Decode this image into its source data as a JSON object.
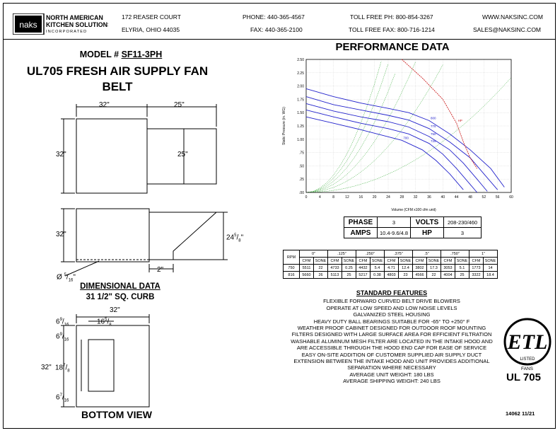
{
  "header": {
    "logo_text_main": "NORTH AMERICAN",
    "logo_text_sub": "KITCHEN SOLUTIONS",
    "logo_text_inc": "INCORPORATED",
    "logo_mark": "naks",
    "address1": "172 REASER COURT",
    "address2": "ELYRIA, OHIO 44035",
    "phone": "PHONE: 440-365-4567",
    "fax": "FAX: 440-365-2100",
    "tollfree_ph": "TOLL FREE PH: 800-854-3267",
    "tollfree_fax": "TOLL FREE FAX: 800-716-1214",
    "web": "WWW.NAKSINC.COM",
    "email": "SALES@NAKSINC.COM"
  },
  "model": {
    "label": "MODEL #",
    "number": "SF11-3PH"
  },
  "product": {
    "line1": "UL705 FRESH AIR SUPPLY FAN",
    "line2": "BELT"
  },
  "performance_title": "PERFORMANCE DATA",
  "dimensions": {
    "front_w1": "32\"",
    "front_w2": "25\"",
    "front_h": "32\"",
    "inner_h": "25\"",
    "side_h": "32\"",
    "side_hood_w": "24",
    "side_hood_frac_n": "5",
    "side_hood_frac_d": "8",
    "side_hood_unit": "\"",
    "side_gap": "2\"",
    "dia_prefix": "Ø",
    "dia_n": "5",
    "dia_d": "16",
    "dia_unit": "\"",
    "title": "DIMENSIONAL DATA",
    "curb": "31 1/2\" SQ. CURB",
    "bottom_w": "32\"",
    "bottom_h": "32\"",
    "b_left_top_whole": "6",
    "b_left_top_n": "9",
    "b_left_top_d": "16",
    "b_open_w_whole": "16",
    "b_open_w_n": "5",
    "b_open_w_d": "8",
    "b_top_gap_whole": "6",
    "b_top_gap_n": "9",
    "b_top_gap_d": "16",
    "b_open_h_whole": "18",
    "b_open_h_n": "7",
    "b_open_h_d": "8",
    "b_bot_gap_whole": "6",
    "b_bot_gap_n": "7",
    "b_bot_gap_d": "16",
    "bottom_view": "BOTTOM VIEW"
  },
  "spec": {
    "phase_label": "PHASE",
    "phase": "3",
    "volts_label": "VOLTS",
    "volts": "208-230/460",
    "amps_label": "AMPS",
    "amps": "10.4-9.6/4.8",
    "hp_label": "HP",
    "hp": "3"
  },
  "perf_table": {
    "rpm_label": "RPM",
    "sp_headers": [
      "0\"",
      ".125\"",
      ".250\"",
      ".375\"",
      ".5\"",
      ".750\"",
      "1\""
    ],
    "sub_headers": [
      "CFM",
      "SONE"
    ],
    "rows": [
      {
        "rpm": "750",
        "cells": [
          "5511",
          "22",
          "4733",
          "0.25",
          "4432",
          "5.4",
          "4.71",
          "12.4",
          "3802",
          "17.3",
          "3053",
          "5.1",
          "1773",
          "14"
        ]
      },
      {
        "rpm": "816",
        "cells": [
          "5660",
          "26",
          "5113",
          "25",
          "5217",
          "0.38",
          "4803",
          "23",
          "4566",
          "22",
          "4004",
          "25",
          "3322",
          "18.4"
        ]
      }
    ]
  },
  "features": {
    "title": "STANDARD FEATURES",
    "items": [
      "FLEXIBLE FORWARD CURVED BELT DRIVE BLOWERS",
      "OPERATE AT LOW SPEED AND LOW NOISE LEVELS",
      "GALVANIZED STEEL HOUSING",
      "HEAVY DUTY BALL BEARINGS SUITABLE FOR -65° TO +250° F",
      "WEATHER PROOF CABINET DESIGNED FOR OUTDOOR ROOF MOUNTING",
      "FILTERS DESIGNED WITH LARGE SURFACE AREA FOR EFFICIENT FILTRATION",
      "WASHABLE ALUMINUM MESH FILTER ARE LOCATED IN THE INTAKE HOOD AND",
      "ARE ACCESSIBLE THROUGH THE HOOD END CAP FOR EASE OF SERVICE",
      "EASY ON-SITE ADDITION OF CUSTOMER SUPPLIED AIR SUPPLY DUCT",
      "EXTENSION BETWEEN THE INTAKE HOOD AND UNIT PROVIDES ADDITIONAL",
      "SEPARATION WHERE NECESSARY",
      "AVERAGE UNIT WEIGHT: 180 LBS",
      "AVERAGE SHIPPING WEIGHT: 240 LBS"
    ]
  },
  "etl": {
    "mark": "ETL",
    "listed": "LISTED",
    "fans": "FANS",
    "standard": "UL 705",
    "colors": {
      "ink": "#000000"
    }
  },
  "doc_number": "14062 11/21",
  "chart_data": {
    "type": "line",
    "title": "",
    "xlabel": "Volume (CFM x100 cfm unit)",
    "ylabel": "Static Pressure (in. WG)",
    "xlim": [
      0,
      60
    ],
    "ylim": [
      0,
      2.5
    ],
    "x_ticks": [
      "0",
      "4",
      "8",
      "12",
      "16",
      "20",
      "24",
      "28",
      "32",
      "36",
      "40",
      "44",
      "48",
      "52",
      "56",
      "60"
    ],
    "y_ticks": [
      ".00",
      ".25",
      ".50",
      ".75",
      "1.00",
      "1.25",
      "1.50",
      "1.75",
      "2.00",
      "2.25",
      "2.50"
    ],
    "series": [
      {
        "name": "800",
        "color": "#2222cc",
        "points": [
          [
            0,
            1.95
          ],
          [
            8,
            1.8
          ],
          [
            16,
            1.68
          ],
          [
            24,
            1.58
          ],
          [
            30,
            1.5
          ],
          [
            36,
            1.35
          ],
          [
            42,
            1.1
          ],
          [
            48,
            0.8
          ],
          [
            54,
            0.45
          ],
          [
            58,
            0.1
          ]
        ]
      },
      {
        "name": "775",
        "color": "#2222cc",
        "points": [
          [
            0,
            1.8
          ],
          [
            8,
            1.65
          ],
          [
            16,
            1.55
          ],
          [
            24,
            1.45
          ],
          [
            30,
            1.36
          ],
          [
            36,
            1.2
          ],
          [
            42,
            0.95
          ],
          [
            48,
            0.65
          ],
          [
            52,
            0.35
          ],
          [
            56,
            0.05
          ]
        ]
      },
      {
        "name": "750",
        "color": "#2222cc",
        "points": [
          [
            0,
            1.67
          ],
          [
            8,
            1.53
          ],
          [
            16,
            1.42
          ],
          [
            24,
            1.33
          ],
          [
            30,
            1.23
          ],
          [
            36,
            1.05
          ],
          [
            42,
            0.8
          ],
          [
            46,
            0.55
          ],
          [
            50,
            0.25
          ],
          [
            53,
            0.02
          ]
        ]
      },
      {
        "name": "725",
        "color": "#2222cc",
        "points": [
          [
            0,
            1.55
          ],
          [
            8,
            1.42
          ],
          [
            16,
            1.3
          ],
          [
            24,
            1.2
          ],
          [
            30,
            1.1
          ],
          [
            36,
            0.92
          ],
          [
            40,
            0.72
          ],
          [
            44,
            0.45
          ],
          [
            48,
            0.15
          ],
          [
            50,
            0.0
          ]
        ]
      },
      {
        "name": "700",
        "color": "#2222cc",
        "points": [
          [
            0,
            1.42
          ],
          [
            8,
            1.3
          ],
          [
            16,
            1.18
          ],
          [
            22,
            1.08
          ],
          [
            28,
            0.98
          ],
          [
            34,
            0.8
          ],
          [
            38,
            0.6
          ],
          [
            42,
            0.35
          ],
          [
            46,
            0.05
          ]
        ]
      },
      {
        "name": "HP",
        "color": "#cc2222",
        "points": [
          [
            28,
            2.5
          ],
          [
            34,
            2.15
          ],
          [
            40,
            1.75
          ],
          [
            44,
            1.3
          ],
          [
            46,
            0.95
          ],
          [
            48,
            0.65
          ],
          [
            50,
            0.45
          ]
        ]
      }
    ],
    "grid": true,
    "legend": "none"
  }
}
